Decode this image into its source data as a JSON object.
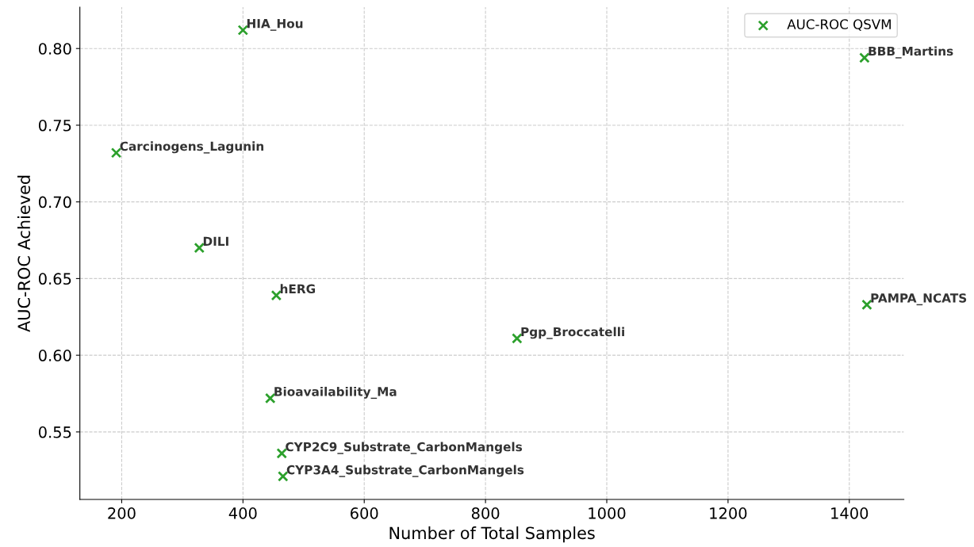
{
  "chart_data": {
    "type": "scatter",
    "xlabel": "Number of Total Samples",
    "ylabel": "AUC-ROC Achieved",
    "x": [
      400,
      1425,
      191,
      328,
      455,
      1429,
      852,
      445,
      464,
      466
    ],
    "series": [
      {
        "name": "AUC-ROC QSVM",
        "color": "#2ca02c",
        "values": [
          0.812,
          0.794,
          0.732,
          0.67,
          0.639,
          0.633,
          0.611,
          0.572,
          0.536,
          0.521
        ]
      }
    ],
    "annotations": [
      {
        "text": "HIA_Hou",
        "x": 400,
        "y": 0.812
      },
      {
        "text": "BBB_Martins",
        "x": 1425,
        "y": 0.794
      },
      {
        "text": "Carcinogens_Lagunin",
        "x": 191,
        "y": 0.732
      },
      {
        "text": "DILI",
        "x": 328,
        "y": 0.67
      },
      {
        "text": "hERG",
        "x": 455,
        "y": 0.639
      },
      {
        "text": "PAMPA_NCATS",
        "x": 1429,
        "y": 0.633
      },
      {
        "text": "Pgp_Broccatelli",
        "x": 852,
        "y": 0.611
      },
      {
        "text": "Bioavailability_Ma",
        "x": 445,
        "y": 0.572
      },
      {
        "text": "CYP2C9_Substrate_CarbonMangels",
        "x": 464,
        "y": 0.536
      },
      {
        "text": "CYP3A4_Substrate_CarbonMangels",
        "x": 466,
        "y": 0.521
      }
    ],
    "xlim": [
      131,
      1490
    ],
    "ylim": [
      0.506,
      0.827
    ],
    "xticks": [
      200,
      400,
      600,
      800,
      1000,
      1200,
      1400
    ],
    "yticks": [
      {
        "value": 0.55,
        "label": "0.55"
      },
      {
        "value": 0.6,
        "label": "0.60"
      },
      {
        "value": 0.65,
        "label": "0.65"
      },
      {
        "value": 0.7,
        "label": "0.70"
      },
      {
        "value": 0.75,
        "label": "0.75"
      },
      {
        "value": 0.8,
        "label": "0.80"
      }
    ],
    "grid": true,
    "legend": "top right",
    "marker": "cross"
  }
}
